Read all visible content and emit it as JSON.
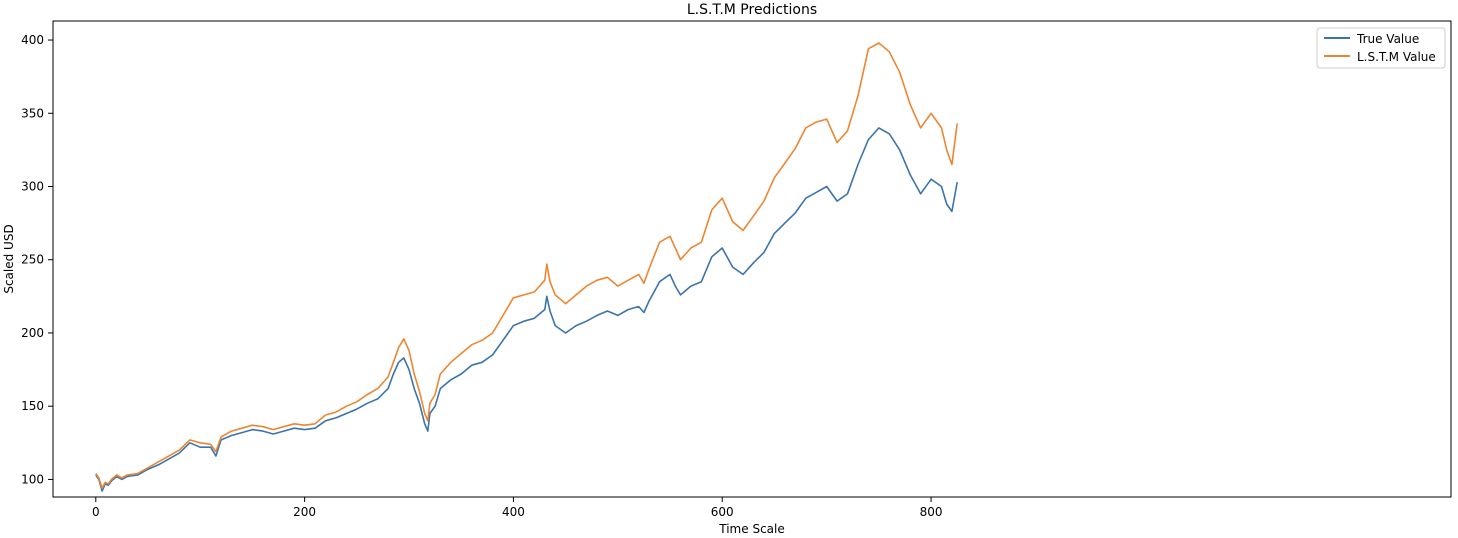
{
  "chart_data": {
    "type": "line",
    "title": "L.S.T.M Predictions",
    "xlabel": "Time Scale",
    "ylabel": "Scaled USD",
    "xlim": [
      -41,
      1298
    ],
    "ylim": [
      88,
      413
    ],
    "x_ticks": [
      0,
      200,
      400,
      600,
      800
    ],
    "y_ticks": [
      100,
      150,
      200,
      250,
      300,
      350,
      400
    ],
    "grid": false,
    "legend_position": "top-right",
    "series": [
      {
        "name": "True Value",
        "color": "#3a74ab",
        "points": [
          [
            0,
            103
          ],
          [
            3,
            100
          ],
          [
            6,
            92
          ],
          [
            9,
            97
          ],
          [
            12,
            96
          ],
          [
            15,
            99
          ],
          [
            20,
            102
          ],
          [
            25,
            100
          ],
          [
            30,
            102
          ],
          [
            40,
            103
          ],
          [
            50,
            107
          ],
          [
            60,
            110
          ],
          [
            70,
            114
          ],
          [
            80,
            118
          ],
          [
            90,
            125
          ],
          [
            100,
            122
          ],
          [
            110,
            122
          ],
          [
            115,
            116
          ],
          [
            120,
            127
          ],
          [
            130,
            130
          ],
          [
            140,
            132
          ],
          [
            150,
            134
          ],
          [
            160,
            133
          ],
          [
            170,
            131
          ],
          [
            180,
            133
          ],
          [
            190,
            135
          ],
          [
            200,
            134
          ],
          [
            210,
            135
          ],
          [
            220,
            140
          ],
          [
            230,
            142
          ],
          [
            240,
            145
          ],
          [
            250,
            148
          ],
          [
            260,
            152
          ],
          [
            270,
            155
          ],
          [
            280,
            162
          ],
          [
            285,
            172
          ],
          [
            290,
            180
          ],
          [
            295,
            183
          ],
          [
            300,
            175
          ],
          [
            305,
            162
          ],
          [
            310,
            152
          ],
          [
            315,
            138
          ],
          [
            318,
            133
          ],
          [
            320,
            145
          ],
          [
            325,
            150
          ],
          [
            330,
            162
          ],
          [
            340,
            168
          ],
          [
            350,
            172
          ],
          [
            360,
            178
          ],
          [
            370,
            180
          ],
          [
            380,
            185
          ],
          [
            390,
            195
          ],
          [
            400,
            205
          ],
          [
            410,
            208
          ],
          [
            420,
            210
          ],
          [
            430,
            216
          ],
          [
            432,
            225
          ],
          [
            435,
            215
          ],
          [
            440,
            205
          ],
          [
            450,
            200
          ],
          [
            460,
            205
          ],
          [
            470,
            208
          ],
          [
            480,
            212
          ],
          [
            490,
            215
          ],
          [
            500,
            212
          ],
          [
            510,
            216
          ],
          [
            520,
            218
          ],
          [
            525,
            214
          ],
          [
            530,
            222
          ],
          [
            540,
            235
          ],
          [
            550,
            240
          ],
          [
            555,
            232
          ],
          [
            560,
            226
          ],
          [
            570,
            232
          ],
          [
            580,
            235
          ],
          [
            590,
            252
          ],
          [
            600,
            258
          ],
          [
            610,
            245
          ],
          [
            620,
            240
          ],
          [
            630,
            248
          ],
          [
            640,
            255
          ],
          [
            650,
            268
          ],
          [
            660,
            275
          ],
          [
            670,
            282
          ],
          [
            680,
            292
          ],
          [
            690,
            296
          ],
          [
            700,
            300
          ],
          [
            710,
            290
          ],
          [
            720,
            295
          ],
          [
            730,
            315
          ],
          [
            740,
            332
          ],
          [
            750,
            340
          ],
          [
            760,
            336
          ],
          [
            770,
            325
          ],
          [
            780,
            308
          ],
          [
            790,
            295
          ],
          [
            800,
            305
          ],
          [
            810,
            300
          ],
          [
            815,
            288
          ],
          [
            820,
            283
          ],
          [
            825,
            303
          ]
        ]
      },
      {
        "name": "L.S.T.M Value",
        "color": "#ed8632",
        "points": [
          [
            0,
            104
          ],
          [
            3,
            101
          ],
          [
            6,
            94
          ],
          [
            9,
            98
          ],
          [
            12,
            97
          ],
          [
            15,
            100
          ],
          [
            20,
            103
          ],
          [
            25,
            101
          ],
          [
            30,
            103
          ],
          [
            40,
            104
          ],
          [
            50,
            108
          ],
          [
            60,
            112
          ],
          [
            70,
            116
          ],
          [
            80,
            120
          ],
          [
            90,
            127
          ],
          [
            100,
            125
          ],
          [
            110,
            124
          ],
          [
            115,
            119
          ],
          [
            120,
            129
          ],
          [
            130,
            133
          ],
          [
            140,
            135
          ],
          [
            150,
            137
          ],
          [
            160,
            136
          ],
          [
            170,
            134
          ],
          [
            180,
            136
          ],
          [
            190,
            138
          ],
          [
            200,
            137
          ],
          [
            210,
            138
          ],
          [
            220,
            144
          ],
          [
            230,
            146
          ],
          [
            240,
            150
          ],
          [
            250,
            153
          ],
          [
            260,
            158
          ],
          [
            270,
            162
          ],
          [
            280,
            170
          ],
          [
            285,
            180
          ],
          [
            290,
            190
          ],
          [
            295,
            196
          ],
          [
            300,
            188
          ],
          [
            305,
            172
          ],
          [
            310,
            160
          ],
          [
            315,
            145
          ],
          [
            318,
            140
          ],
          [
            320,
            152
          ],
          [
            325,
            158
          ],
          [
            330,
            172
          ],
          [
            340,
            180
          ],
          [
            350,
            186
          ],
          [
            360,
            192
          ],
          [
            370,
            195
          ],
          [
            380,
            200
          ],
          [
            390,
            212
          ],
          [
            400,
            224
          ],
          [
            410,
            226
          ],
          [
            420,
            228
          ],
          [
            430,
            236
          ],
          [
            432,
            247
          ],
          [
            435,
            235
          ],
          [
            440,
            226
          ],
          [
            450,
            220
          ],
          [
            460,
            226
          ],
          [
            470,
            232
          ],
          [
            480,
            236
          ],
          [
            490,
            238
          ],
          [
            500,
            232
          ],
          [
            510,
            236
          ],
          [
            520,
            240
          ],
          [
            525,
            234
          ],
          [
            530,
            244
          ],
          [
            540,
            262
          ],
          [
            550,
            266
          ],
          [
            555,
            258
          ],
          [
            560,
            250
          ],
          [
            570,
            258
          ],
          [
            580,
            262
          ],
          [
            590,
            284
          ],
          [
            600,
            292
          ],
          [
            610,
            276
          ],
          [
            620,
            270
          ],
          [
            630,
            280
          ],
          [
            640,
            290
          ],
          [
            650,
            306
          ],
          [
            660,
            316
          ],
          [
            670,
            326
          ],
          [
            680,
            340
          ],
          [
            690,
            344
          ],
          [
            700,
            346
          ],
          [
            710,
            330
          ],
          [
            720,
            338
          ],
          [
            730,
            362
          ],
          [
            740,
            394
          ],
          [
            750,
            398
          ],
          [
            760,
            392
          ],
          [
            770,
            378
          ],
          [
            780,
            356
          ],
          [
            790,
            340
          ],
          [
            800,
            350
          ],
          [
            810,
            340
          ],
          [
            815,
            325
          ],
          [
            820,
            315
          ],
          [
            825,
            343
          ]
        ]
      }
    ]
  }
}
